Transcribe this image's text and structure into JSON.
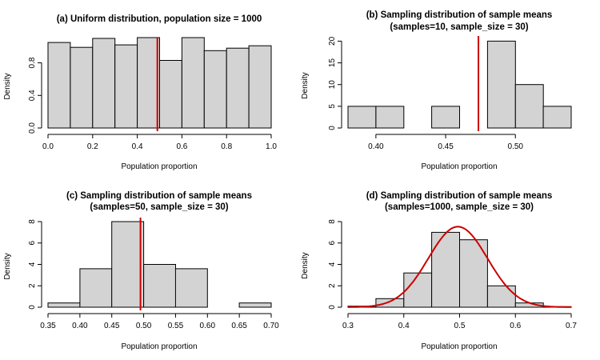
{
  "chart_data": [
    {
      "type": "bar",
      "title": "(a) Uniform distribution, population size = 1000",
      "subtitle": "",
      "xlabel": "Population proportion",
      "ylabel": "Density",
      "xlim": [
        0,
        1
      ],
      "ylim": [
        0,
        1.1
      ],
      "x_ticks": [
        0,
        0.2,
        0.4,
        0.6,
        0.8,
        1
      ],
      "x_tick_labels": [
        "0.0",
        "0.2",
        "0.4",
        "0.6",
        "0.8",
        "1.0"
      ],
      "y_ticks": [
        0,
        0.4,
        0.8
      ],
      "y_tick_labels": [
        "0.0",
        "0.4",
        "0.8"
      ],
      "bins": [
        {
          "x0": 0.0,
          "x1": 0.1,
          "value": 1.05
        },
        {
          "x0": 0.1,
          "x1": 0.2,
          "value": 0.99
        },
        {
          "x0": 0.2,
          "x1": 0.3,
          "value": 1.1
        },
        {
          "x0": 0.3,
          "x1": 0.4,
          "value": 1.02
        },
        {
          "x0": 0.4,
          "x1": 0.5,
          "value": 1.11
        },
        {
          "x0": 0.5,
          "x1": 0.6,
          "value": 0.83
        },
        {
          "x0": 0.6,
          "x1": 0.7,
          "value": 1.11
        },
        {
          "x0": 0.7,
          "x1": 0.8,
          "value": 0.95
        },
        {
          "x0": 0.8,
          "x1": 0.9,
          "value": 0.98
        },
        {
          "x0": 0.9,
          "x1": 1.0,
          "value": 1.01
        }
      ],
      "mean_line": 0.49,
      "mean_line_color": "#cc0000",
      "bar_color": "#d3d3d3",
      "grid": false
    },
    {
      "type": "bar",
      "title": "(b) Sampling distribution of sample means",
      "subtitle": "(samples=10, sample_size = 30)",
      "xlabel": "Population proportion",
      "ylabel": "Density",
      "xlim": [
        0.38,
        0.54
      ],
      "ylim": [
        0,
        21
      ],
      "x_ticks": [
        0.4,
        0.45,
        0.5
      ],
      "x_tick_labels": [
        "0.40",
        "0.45",
        "0.50"
      ],
      "y_ticks": [
        0,
        5,
        10,
        15,
        20
      ],
      "y_tick_labels": [
        "0",
        "5",
        "10",
        "15",
        "20"
      ],
      "bins": [
        {
          "x0": 0.38,
          "x1": 0.4,
          "value": 5
        },
        {
          "x0": 0.4,
          "x1": 0.42,
          "value": 5
        },
        {
          "x0": 0.42,
          "x1": 0.44,
          "value": 0
        },
        {
          "x0": 0.44,
          "x1": 0.46,
          "value": 5
        },
        {
          "x0": 0.46,
          "x1": 0.48,
          "value": 0
        },
        {
          "x0": 0.48,
          "x1": 0.5,
          "value": 20
        },
        {
          "x0": 0.5,
          "x1": 0.52,
          "value": 10
        },
        {
          "x0": 0.52,
          "x1": 0.54,
          "value": 5
        }
      ],
      "mean_line": 0.4735,
      "mean_line_color": "#cc0000",
      "bar_color": "#d3d3d3",
      "grid": false
    },
    {
      "type": "bar",
      "title": "(c) Sampling distribution of sample means",
      "subtitle": "(samples=50, sample_size = 30)",
      "xlabel": "Population proportion",
      "ylabel": "Density",
      "xlim": [
        0.35,
        0.7
      ],
      "ylim": [
        0,
        8.3
      ],
      "x_ticks": [
        0.35,
        0.4,
        0.45,
        0.5,
        0.55,
        0.6,
        0.65,
        0.7
      ],
      "x_tick_labels": [
        "0.35",
        "0.40",
        "0.45",
        "0.50",
        "0.55",
        "0.60",
        "0.65",
        "0.70"
      ],
      "y_ticks": [
        0,
        2,
        4,
        6,
        8
      ],
      "y_tick_labels": [
        "0",
        "2",
        "4",
        "6",
        "8"
      ],
      "bins": [
        {
          "x0": 0.35,
          "x1": 0.4,
          "value": 0.4
        },
        {
          "x0": 0.4,
          "x1": 0.45,
          "value": 3.6
        },
        {
          "x0": 0.45,
          "x1": 0.5,
          "value": 8.0
        },
        {
          "x0": 0.5,
          "x1": 0.55,
          "value": 4.0
        },
        {
          "x0": 0.55,
          "x1": 0.6,
          "value": 3.6
        },
        {
          "x0": 0.6,
          "x1": 0.65,
          "value": 0
        },
        {
          "x0": 0.65,
          "x1": 0.7,
          "value": 0.4
        }
      ],
      "mean_line": 0.495,
      "mean_line_color": "#cc0000",
      "bar_color": "#d3d3d3",
      "grid": false
    },
    {
      "type": "bar",
      "title": "(d) Sampling distribution of sample means",
      "subtitle": "(samples=1000, sample_size = 30)",
      "xlabel": "Population proportion",
      "ylabel": "Density",
      "xlim": [
        0.3,
        0.7
      ],
      "ylim": [
        0,
        8.3
      ],
      "x_ticks": [
        0.3,
        0.4,
        0.5,
        0.6,
        0.7
      ],
      "x_tick_labels": [
        "0.3",
        "0.4",
        "0.5",
        "0.6",
        "0.7"
      ],
      "y_ticks": [
        0,
        2,
        4,
        6,
        8
      ],
      "y_tick_labels": [
        "0",
        "2",
        "4",
        "6",
        "8"
      ],
      "bins": [
        {
          "x0": 0.3,
          "x1": 0.35,
          "value": 0.1
        },
        {
          "x0": 0.35,
          "x1": 0.4,
          "value": 0.8
        },
        {
          "x0": 0.4,
          "x1": 0.45,
          "value": 3.2
        },
        {
          "x0": 0.45,
          "x1": 0.5,
          "value": 7.0
        },
        {
          "x0": 0.5,
          "x1": 0.55,
          "value": 6.3
        },
        {
          "x0": 0.55,
          "x1": 0.6,
          "value": 2.0
        },
        {
          "x0": 0.6,
          "x1": 0.65,
          "value": 0.4
        },
        {
          "x0": 0.65,
          "x1": 0.7,
          "value": 0.05
        }
      ],
      "normal_curve": {
        "mean": 0.497,
        "sd": 0.053,
        "color": "#cc0000"
      },
      "bar_color": "#d3d3d3",
      "grid": false
    }
  ]
}
